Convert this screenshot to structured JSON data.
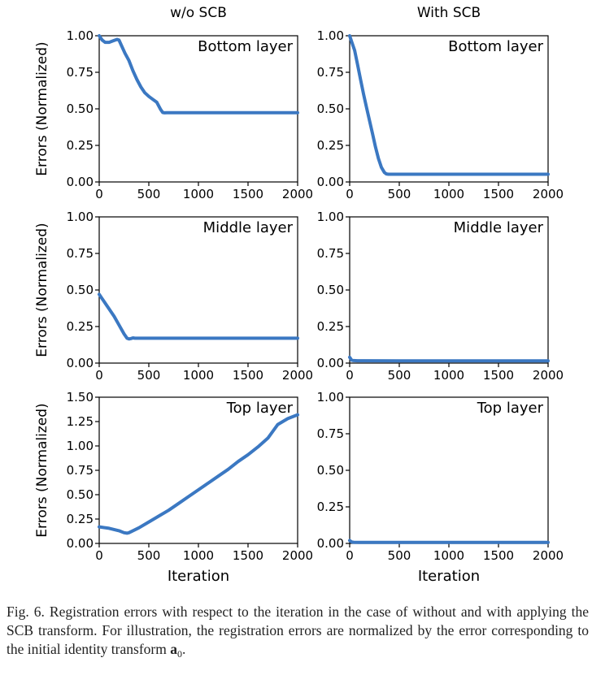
{
  "figure": {
    "column_titles": [
      "w/o SCB",
      "With SCB"
    ],
    "ylabel": "Errors (Normalized)",
    "xlabel": "Iteration"
  },
  "chart_data": [
    {
      "type": "line",
      "row": 0,
      "col": 0,
      "label": "Bottom layer",
      "xlim": [
        0,
        2000
      ],
      "ylim": [
        0,
        1
      ],
      "xticks": [
        0,
        500,
        1000,
        1500,
        2000
      ],
      "yticks": [
        0.0,
        0.25,
        0.5,
        0.75,
        1.0
      ],
      "xticklabels": [
        "0",
        "500",
        "1000",
        "1500",
        "2000"
      ],
      "yticklabels": [
        "0.00",
        "0.25",
        "0.50",
        "0.75",
        "1.00"
      ],
      "color": "#3b78c2",
      "x": [
        0,
        30,
        60,
        100,
        140,
        180,
        200,
        220,
        260,
        300,
        340,
        380,
        420,
        460,
        500,
        540,
        580,
        600,
        620,
        640,
        660,
        680,
        700,
        800,
        1000,
        1500,
        2000
      ],
      "y": [
        1.0,
        0.97,
        0.955,
        0.955,
        0.965,
        0.975,
        0.97,
        0.94,
        0.88,
        0.83,
        0.76,
        0.7,
        0.65,
        0.61,
        0.585,
        0.565,
        0.545,
        0.52,
        0.495,
        0.475,
        0.473,
        0.474,
        0.474,
        0.474,
        0.474,
        0.474,
        0.474
      ]
    },
    {
      "type": "line",
      "row": 0,
      "col": 1,
      "label": "Bottom layer",
      "xlim": [
        0,
        2000
      ],
      "ylim": [
        0,
        1
      ],
      "xticks": [
        0,
        500,
        1000,
        1500,
        2000
      ],
      "yticks": [
        0.0,
        0.25,
        0.5,
        0.75,
        1.0
      ],
      "xticklabels": [
        "0",
        "500",
        "1000",
        "1500",
        "2000"
      ],
      "yticklabels": [
        "0.00",
        "0.25",
        "0.50",
        "0.75",
        "1.00"
      ],
      "color": "#3b78c2",
      "x": [
        0,
        20,
        50,
        80,
        110,
        140,
        170,
        200,
        230,
        260,
        290,
        320,
        350,
        370,
        390,
        420,
        500,
        1000,
        1500,
        2000
      ],
      "y": [
        1.0,
        0.96,
        0.9,
        0.8,
        0.7,
        0.6,
        0.51,
        0.42,
        0.33,
        0.24,
        0.16,
        0.1,
        0.065,
        0.055,
        0.053,
        0.053,
        0.053,
        0.053,
        0.053,
        0.053
      ]
    },
    {
      "type": "line",
      "row": 1,
      "col": 0,
      "label": "Middle layer",
      "xlim": [
        0,
        2000
      ],
      "ylim": [
        0,
        1
      ],
      "xticks": [
        0,
        500,
        1000,
        1500,
        2000
      ],
      "yticks": [
        0.0,
        0.25,
        0.5,
        0.75,
        1.0
      ],
      "xticklabels": [
        "0",
        "500",
        "1000",
        "1500",
        "2000"
      ],
      "yticklabels": [
        "0.00",
        "0.25",
        "0.50",
        "0.75",
        "1.00"
      ],
      "color": "#3b78c2",
      "x": [
        0,
        50,
        100,
        150,
        200,
        250,
        280,
        300,
        320,
        340,
        360,
        400,
        500,
        1000,
        1500,
        2000
      ],
      "y": [
        0.47,
        0.42,
        0.37,
        0.32,
        0.26,
        0.2,
        0.17,
        0.165,
        0.168,
        0.172,
        0.17,
        0.17,
        0.17,
        0.17,
        0.17,
        0.17
      ]
    },
    {
      "type": "line",
      "row": 1,
      "col": 1,
      "label": "Middle layer",
      "xlim": [
        0,
        2000
      ],
      "ylim": [
        0,
        1
      ],
      "xticks": [
        0,
        500,
        1000,
        1500,
        2000
      ],
      "yticks": [
        0.0,
        0.25,
        0.5,
        0.75,
        1.0
      ],
      "xticklabels": [
        "0",
        "500",
        "1000",
        "1500",
        "2000"
      ],
      "yticklabels": [
        "0.00",
        "0.25",
        "0.50",
        "0.75",
        "1.00"
      ],
      "color": "#3b78c2",
      "x": [
        0,
        10,
        20,
        40,
        80,
        150,
        500,
        1000,
        1500,
        2000
      ],
      "y": [
        0.04,
        0.03,
        0.02,
        0.017,
        0.016,
        0.016,
        0.015,
        0.015,
        0.015,
        0.015
      ]
    },
    {
      "type": "line",
      "row": 2,
      "col": 0,
      "label": "Top layer",
      "xlim": [
        0,
        2000
      ],
      "ylim": [
        0,
        1.5
      ],
      "xticks": [
        0,
        500,
        1000,
        1500,
        2000
      ],
      "yticks": [
        0.0,
        0.25,
        0.5,
        0.75,
        1.0,
        1.25,
        1.5
      ],
      "xticklabels": [
        "0",
        "500",
        "1000",
        "1500",
        "2000"
      ],
      "yticklabels": [
        "0.00",
        "0.25",
        "0.50",
        "0.75",
        "1.00",
        "1.25",
        "1.50"
      ],
      "color": "#3b78c2",
      "x": [
        0,
        100,
        200,
        250,
        280,
        300,
        400,
        500,
        600,
        700,
        800,
        900,
        1000,
        1100,
        1200,
        1300,
        1400,
        1500,
        1600,
        1700,
        1750,
        1800,
        1900,
        2000
      ],
      "y": [
        0.17,
        0.155,
        0.13,
        0.11,
        0.105,
        0.11,
        0.16,
        0.22,
        0.28,
        0.34,
        0.41,
        0.48,
        0.55,
        0.62,
        0.69,
        0.76,
        0.84,
        0.91,
        0.99,
        1.08,
        1.15,
        1.22,
        1.28,
        1.32
      ]
    },
    {
      "type": "line",
      "row": 2,
      "col": 1,
      "label": "Top layer",
      "xlim": [
        0,
        2000
      ],
      "ylim": [
        0,
        1
      ],
      "xticks": [
        0,
        500,
        1000,
        1500,
        2000
      ],
      "yticks": [
        0.0,
        0.25,
        0.5,
        0.75,
        1.0
      ],
      "xticklabels": [
        "0",
        "500",
        "1000",
        "1500",
        "2000"
      ],
      "yticklabels": [
        "0.00",
        "0.25",
        "0.50",
        "0.75",
        "1.00"
      ],
      "color": "#3b78c2",
      "x": [
        0,
        10,
        20,
        40,
        100,
        500,
        1000,
        1500,
        2000
      ],
      "y": [
        0.02,
        0.015,
        0.01,
        0.008,
        0.007,
        0.007,
        0.007,
        0.007,
        0.007
      ]
    }
  ],
  "caption": {
    "prefix": "Fig. 6.   Registration errors with respect to the iteration in the case of without and with applying the SCB transform. For illustration, the registration errors are normalized by the error corresponding to the initial identity transform ",
    "symbol": "a",
    "subscript": "0",
    "suffix": "."
  }
}
